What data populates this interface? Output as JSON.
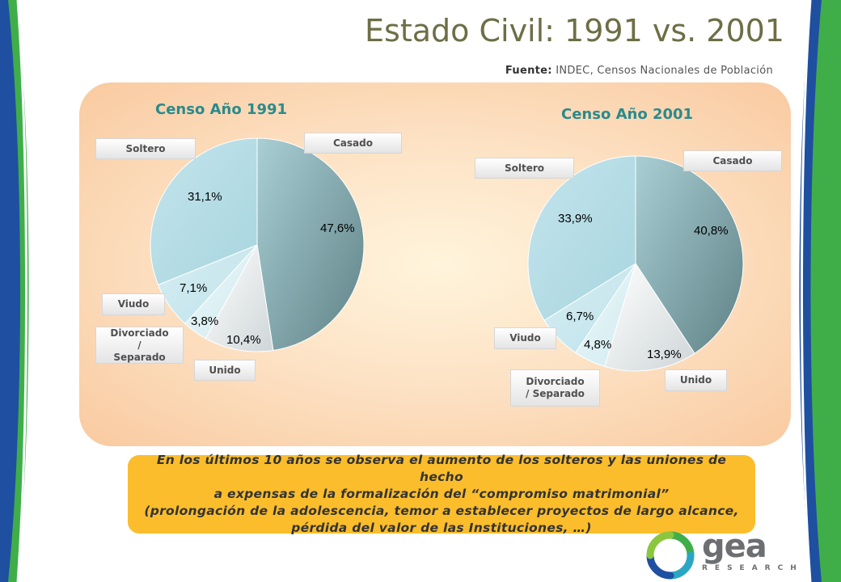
{
  "title": "Estado Civil: 1991 vs. 2001",
  "source": {
    "label": "Fuente:",
    "text": "INDEC, Censos Nacionales de Población"
  },
  "colors": {
    "accent": "#2b8a8c",
    "note_bg": "#fbbd2c",
    "left_band": "#1f4fa0",
    "right_band": "#3fae49"
  },
  "chart_data": [
    {
      "type": "pie",
      "title": "Censo Año 1991",
      "categories": [
        "Casado",
        "Unido",
        "Divorciado / Separado",
        "Viudo",
        "Soltero"
      ],
      "values": [
        47.6,
        10.4,
        3.8,
        7.1,
        31.1
      ],
      "data_labels": [
        "47,6%",
        "10,4%",
        "3,8%",
        "7,1%",
        "31,1%"
      ]
    },
    {
      "type": "pie",
      "title": "Censo Año 2001",
      "categories": [
        "Casado",
        "Unido",
        "Divorciado / Separado",
        "Viudo",
        "Soltero"
      ],
      "values": [
        40.8,
        13.9,
        4.8,
        6.7,
        33.9
      ],
      "data_labels": [
        "40,8%",
        "13,9%",
        "4,8%",
        "6,7%",
        "33,9%"
      ]
    }
  ],
  "note": {
    "line1": "En los últimos 10 años se observa el aumento de los solteros y las uniones de hecho",
    "line2": "a expensas de la formalización del “compromiso matrimonial”",
    "line3": "(prolongación de la adolescencia, temor a establecer proyectos de largo alcance,",
    "line4": "pérdida del valor de las Instituciones, …)"
  },
  "logo": {
    "brand": "gea",
    "sub": "RESEARCH"
  }
}
